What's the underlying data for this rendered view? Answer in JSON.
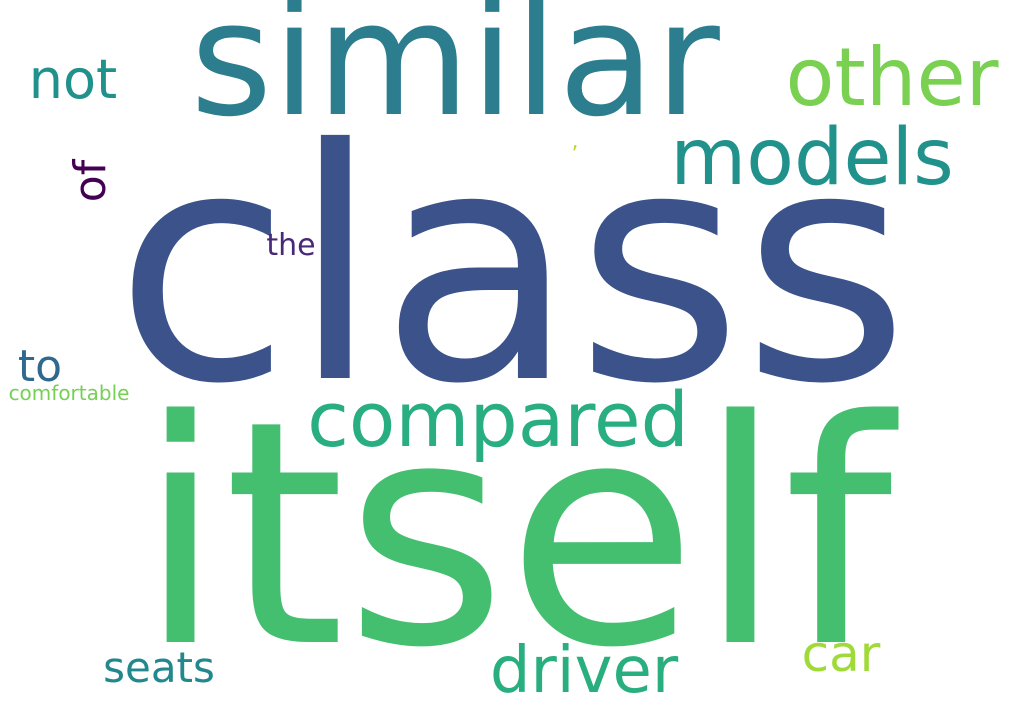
{
  "words": {
    "class": {
      "text": "class",
      "color": "#3b528b"
    },
    "itself": {
      "text": "itself",
      "color": "#44bf70"
    },
    "similar": {
      "text": "similar",
      "color": "#2c7e8e"
    },
    "other": {
      "text": "other",
      "color": "#7ad151"
    },
    "models": {
      "text": "models",
      "color": "#21918c"
    },
    "compared": {
      "text": "compared",
      "color": "#28ae80"
    },
    "driver": {
      "text": "driver",
      "color": "#29af7f"
    },
    "not": {
      "text": "not",
      "color": "#21918c"
    },
    "seats": {
      "text": "seats",
      "color": "#23888e"
    },
    "car": {
      "text": "car",
      "color": "#a0da39"
    },
    "to": {
      "text": "to",
      "color": "#31688e"
    },
    "of": {
      "text": "of",
      "color": "#440154"
    },
    "the": {
      "text": "the",
      "color": "#482878"
    },
    "comfortable": {
      "text": "comfortable",
      "color": "#75d054"
    },
    "comma": {
      "text": ",",
      "color": "#b5de2b"
    }
  }
}
